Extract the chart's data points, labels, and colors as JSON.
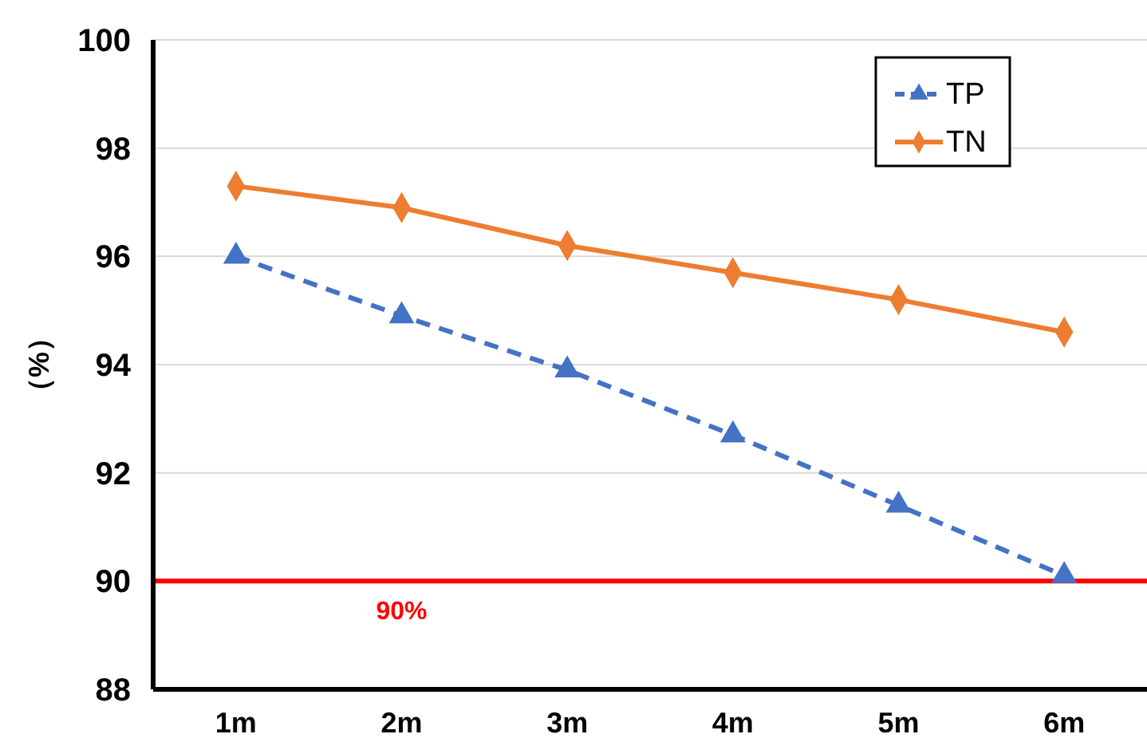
{
  "chart_data": {
    "type": "line",
    "ylabel": "（%）",
    "categories": [
      "1m",
      "2m",
      "3m",
      "4m",
      "5m",
      "6m"
    ],
    "series": [
      {
        "name": "TP",
        "color": "#4472c4",
        "values": [
          96.0,
          94.9,
          93.9,
          92.7,
          91.4,
          90.1
        ],
        "marker": "triangle",
        "line_style": "dashed"
      },
      {
        "name": "TN",
        "color": "#ed7d31",
        "values": [
          97.3,
          96.9,
          96.2,
          95.7,
          95.2,
          94.6
        ],
        "marker": "diamond",
        "line_style": "solid"
      }
    ],
    "ylim": [
      88,
      100
    ],
    "yticks": [
      88,
      90,
      92,
      94,
      96,
      98,
      100
    ],
    "grid": "y",
    "legend": "top right",
    "ref_lines": [
      {
        "axis": "y",
        "value": 90,
        "label": "90%",
        "color": "#ff0000"
      }
    ]
  }
}
